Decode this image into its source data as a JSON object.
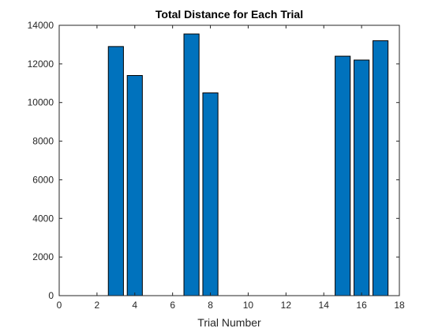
{
  "chart_data": {
    "type": "bar",
    "title": "Total Distance for Each Trial",
    "xlabel": "Trial Number",
    "ylabel": "",
    "x": [
      3,
      4,
      7,
      8,
      15,
      16,
      17
    ],
    "values": [
      12900,
      11400,
      13550,
      10500,
      12400,
      12200,
      13200
    ],
    "xlim": [
      0,
      18
    ],
    "ylim": [
      0,
      14000
    ],
    "xticks": [
      "0",
      "2",
      "4",
      "6",
      "8",
      "10",
      "12",
      "14",
      "16",
      "18"
    ],
    "yticks": [
      "0",
      "2000",
      "4000",
      "6000",
      "8000",
      "10000",
      "12000",
      "14000"
    ],
    "grid": false,
    "legend": "none",
    "bar_color": "#0072BD",
    "edge_color": "#000000"
  }
}
